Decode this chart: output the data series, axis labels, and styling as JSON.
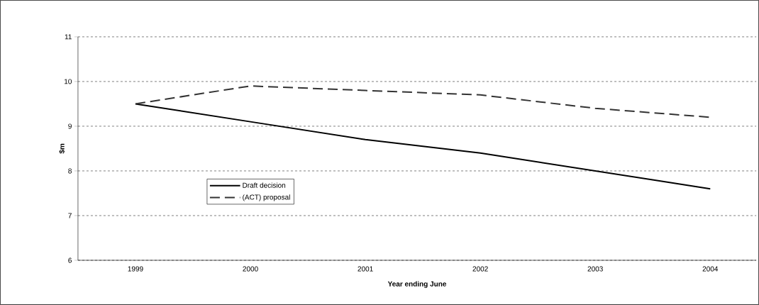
{
  "chart_data": {
    "type": "line",
    "xlabel": "Year ending June",
    "ylabel": "$m",
    "categories": [
      "1999",
      "2000",
      "2001",
      "2002",
      "2003",
      "2004"
    ],
    "series": [
      {
        "name": "Draft decision",
        "color": "#000000",
        "line_style": "solid",
        "values": [
          9.5,
          9.1,
          8.7,
          8.4,
          8.0,
          7.6
        ]
      },
      {
        "name": "(ACT) proposal",
        "color": "#333333",
        "line_style": "dashed",
        "values": [
          9.5,
          9.9,
          9.8,
          9.7,
          9.4,
          9.2
        ]
      }
    ],
    "ylim": [
      6,
      11
    ],
    "yticks": [
      6,
      7,
      8,
      9,
      10,
      11
    ],
    "grid": "y",
    "legend": "left",
    "marker": "none"
  }
}
